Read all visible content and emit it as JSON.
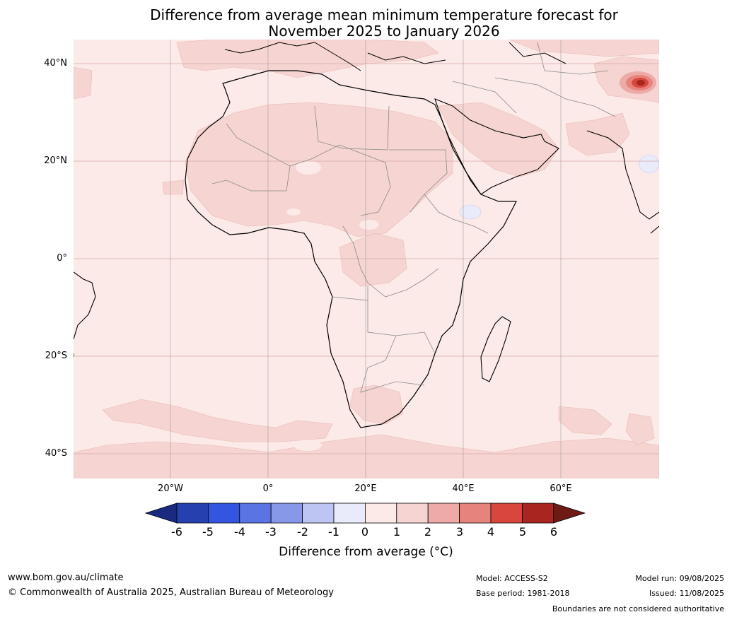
{
  "title": {
    "line1": "Difference from average mean minimum temperature forecast for",
    "line2": "November 2025 to January 2026"
  },
  "map": {
    "lat_labels": [
      "40°N",
      "20°N",
      "0°",
      "20°S",
      "40°S"
    ],
    "lon_labels": [
      "20°W",
      "0°",
      "20°E",
      "40°E",
      "60°E"
    ],
    "colors": {
      "anomaly_0_1": "#fbeae7",
      "anomaly_1_2": "#f5d4d1",
      "anomaly_2_3": "#edaaa6",
      "anomaly_3_4": "#e6837c",
      "anomaly_4_5": "#d9463d",
      "anomaly_5_6": "#a8261f",
      "anomaly_neg_1_0": "#e9ebfa",
      "coastline": "#000000",
      "borders": "#808080",
      "gridlines": "#d8a8a8"
    }
  },
  "colorbar": {
    "ticks": [
      "-6",
      "-5",
      "-4",
      "-3",
      "-2",
      "-1",
      "0",
      "1",
      "2",
      "3",
      "4",
      "5",
      "6"
    ],
    "label": "Difference from average (°C)",
    "colors": [
      "#1a2a80",
      "#2640b0",
      "#3455e0",
      "#5a75e3",
      "#8798e8",
      "#bdc6f3",
      "#e9ebfa",
      "#fbeae7",
      "#f5d4d1",
      "#edaaa6",
      "#e6837c",
      "#d9463d",
      "#a8261f",
      "#6e1a15"
    ]
  },
  "footer": {
    "website": "www.bom.gov.au/climate",
    "copyright": "© Commonwealth of Australia 2025, Australian Bureau of Meteorology",
    "model": "Model: ACCESS-S2",
    "base_period": "Base period: 1981-2018",
    "model_run": "Model run: 09/08/2025",
    "issued": "Issued: 11/08/2025",
    "disclaimer": "Boundaries are not considered authoritative"
  }
}
